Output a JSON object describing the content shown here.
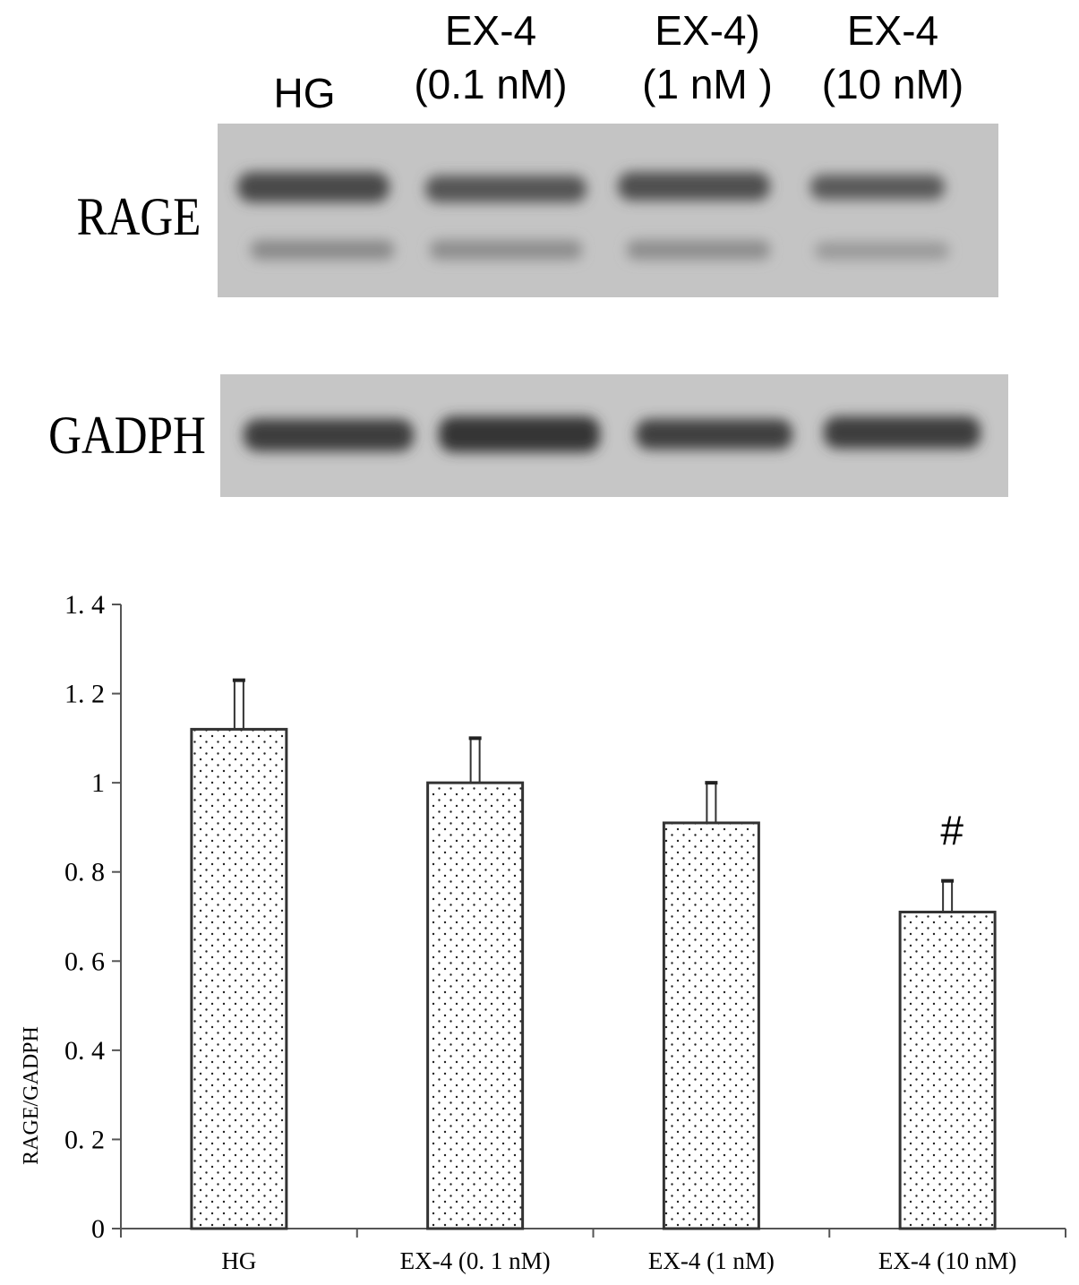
{
  "blot": {
    "lanes": [
      {
        "lines": [
          "HG"
        ]
      },
      {
        "lines": [
          "EX-4",
          "(0.1 nM)"
        ]
      },
      {
        "lines": [
          "EX-4)",
          "(1 nM )"
        ]
      },
      {
        "lines": [
          "EX-4",
          "(10 nM)"
        ]
      }
    ],
    "rows": [
      "RAGE",
      "GADPH"
    ]
  },
  "chart_data": {
    "type": "bar",
    "y_label": "RAGE/GADPH",
    "categories": [
      "HG",
      "EX-4 (0. 1 nM)",
      "EX-4 (1 nM)",
      "EX-4 (10 nM)"
    ],
    "values": [
      1.12,
      1.0,
      0.91,
      0.71
    ],
    "errors": [
      0.11,
      0.1,
      0.09,
      0.07
    ],
    "annotations": [
      null,
      null,
      null,
      "#"
    ],
    "color": "#ffffff",
    "ylim": [
      0,
      1.4
    ],
    "yticks": [
      0,
      {
        "value": 0.2,
        "label": "0. 2"
      },
      {
        "value": 0.4,
        "label": "0. 4"
      },
      {
        "value": 0.6,
        "label": "0. 6"
      },
      {
        "value": 0.8,
        "label": "0. 8"
      },
      1,
      {
        "value": 1.2,
        "label": "1. 2"
      },
      {
        "value": 1.4,
        "label": "1. 4"
      }
    ]
  }
}
